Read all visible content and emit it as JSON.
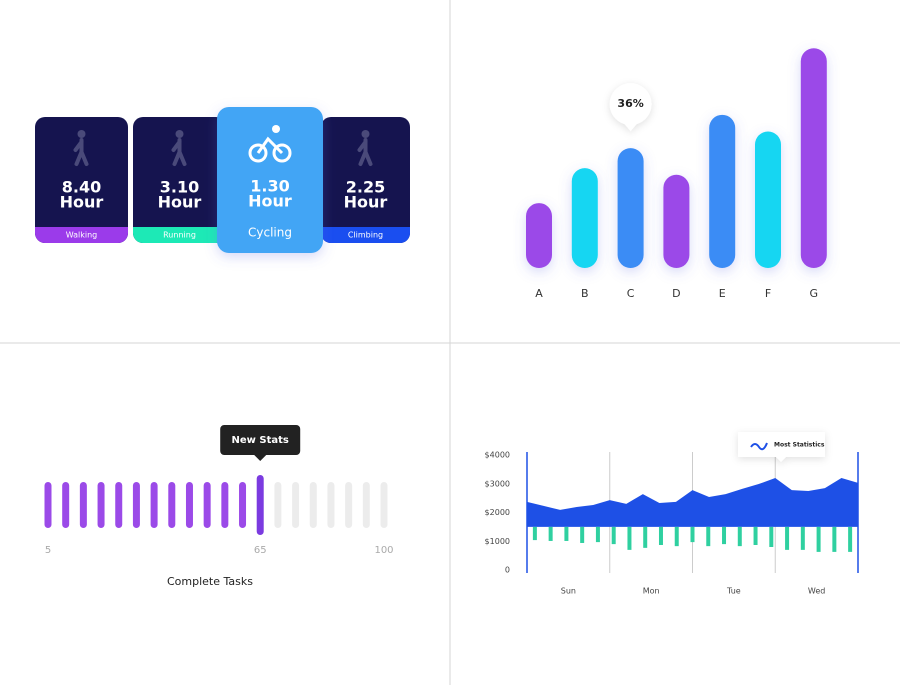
{
  "activities": [
    {
      "value": "8.40",
      "unit": "Hour",
      "label": "Walking"
    },
    {
      "value": "3.10",
      "unit": "Hour",
      "label": "Running"
    },
    {
      "value": "1.30",
      "unit": "Hour",
      "label": "Cycling"
    },
    {
      "value": "2.25",
      "unit": "Hour",
      "label": "Climbing"
    }
  ],
  "chart_data": [
    {
      "type": "bar",
      "categories": [
        "A",
        "B",
        "C",
        "D",
        "E",
        "F",
        "G"
      ],
      "values": [
        19.5,
        30,
        36,
        28,
        46,
        41,
        66
      ],
      "value_labels": [
        null,
        null,
        "36%",
        null,
        null,
        null,
        null
      ],
      "colors": [
        "#9b4ae8",
        "#14d6f2",
        "#3a8cf5",
        "#9b4ae8",
        "#3a8cf5",
        "#14d6f2",
        "#9b4ae8"
      ]
    },
    {
      "type": "progress",
      "title": "Complete Tasks",
      "tooltip": "New Stats",
      "value": 65,
      "xlim": [
        5,
        100
      ],
      "xticks": [
        5,
        65,
        100
      ],
      "color": "#9b4ae8",
      "highlight_color": "#7b3be0"
    },
    {
      "type": "area",
      "tooltip": "Most Statistics",
      "x_labels": [
        "Sun",
        "Mon",
        "Tue",
        "Wed"
      ],
      "ylim": [
        0,
        4000
      ],
      "yticks": [
        0,
        {
          "value": 1000,
          "label": "$1000"
        },
        {
          "value": 2000,
          "label": "$2000"
        },
        {
          "value": 3000,
          "label": "$3000"
        },
        {
          "value": 4000,
          "label": "$4000"
        }
      ],
      "baseline": 1500,
      "series": [
        {
          "color": "#1e50e6",
          "values": [
            2370,
            2230,
            2090,
            2190,
            2260,
            2430,
            2300,
            2640,
            2330,
            2370,
            2780,
            2540,
            2640,
            2820,
            2990,
            3200,
            2780,
            2750,
            2850,
            3200,
            3030
          ]
        },
        {
          "color": "#2fd0a0",
          "values": [
            1040,
            1010,
            1010,
            940,
            970,
            900,
            700,
            770,
            870,
            830,
            970,
            830,
            900,
            830,
            870,
            800,
            700,
            700,
            630,
            630,
            630
          ]
        }
      ]
    }
  ]
}
